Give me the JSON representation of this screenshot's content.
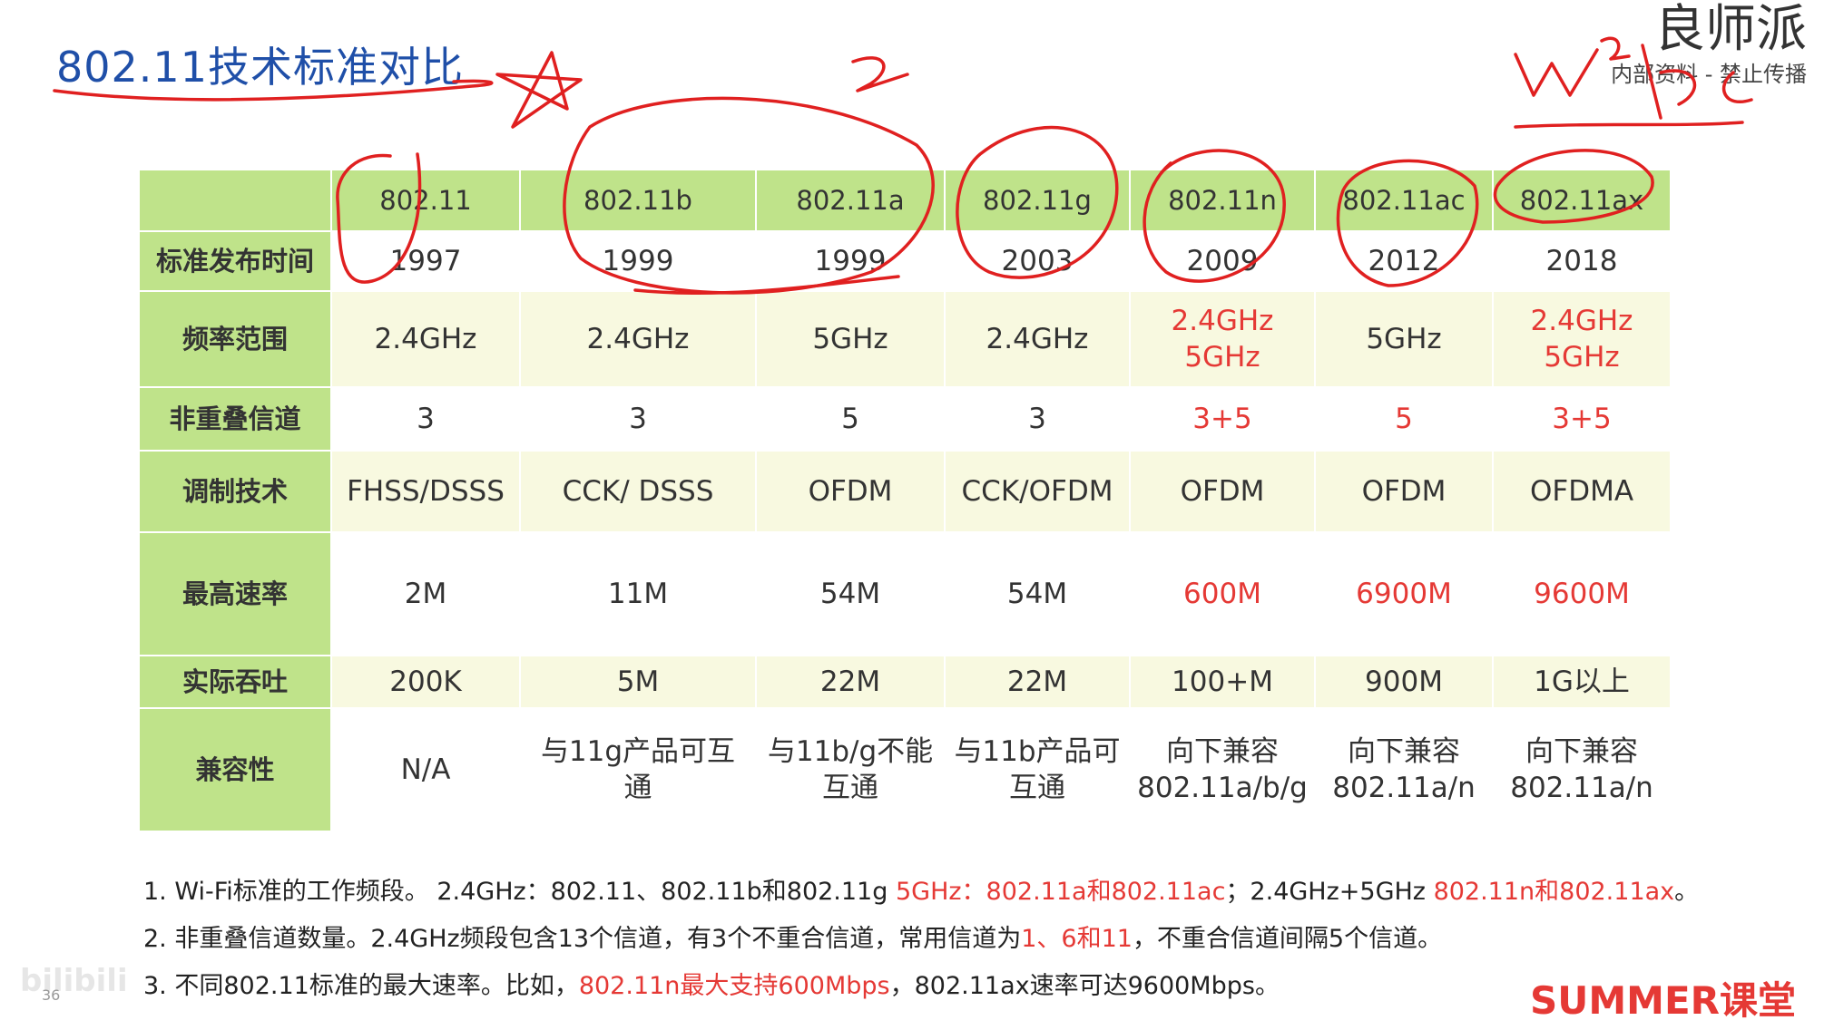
{
  "title": "802.11技术标准对比",
  "brand_top": {
    "name": "良师派",
    "sub": "内部资料 - 禁止传播"
  },
  "table": {
    "header_row_label": "",
    "columns": [
      "802.11",
      "802.11b",
      "802.11a",
      "802.11g",
      "802.11n",
      "802.11ac",
      "802.11ax"
    ],
    "rows": [
      {
        "label": "标准发布时间",
        "cells": [
          [
            "1997"
          ],
          [
            "1999"
          ],
          [
            "1999"
          ],
          [
            "2003"
          ],
          [
            "2009"
          ],
          [
            "2012"
          ],
          [
            "2018"
          ]
        ],
        "red": []
      },
      {
        "label": "频率范围",
        "cells": [
          [
            "2.4GHz"
          ],
          [
            "2.4GHz"
          ],
          [
            "5GHz"
          ],
          [
            "2.4GHz"
          ],
          [
            "2.4GHz",
            "5GHz"
          ],
          [
            "5GHz"
          ],
          [
            "2.4GHz",
            "5GHz"
          ]
        ],
        "red": [
          4,
          6
        ]
      },
      {
        "label": "非重叠信道",
        "cells": [
          [
            "3"
          ],
          [
            "3"
          ],
          [
            "5"
          ],
          [
            "3"
          ],
          [
            "3+5"
          ],
          [
            "5"
          ],
          [
            "3+5"
          ]
        ],
        "red": [
          4,
          5,
          6
        ]
      },
      {
        "label": "调制技术",
        "cells": [
          [
            "FHSS/DSSS"
          ],
          [
            "CCK/ DSSS"
          ],
          [
            "OFDM"
          ],
          [
            "CCK/OFDM"
          ],
          [
            "OFDM"
          ],
          [
            "OFDM"
          ],
          [
            "OFDMA"
          ]
        ],
        "red": []
      },
      {
        "label": "最高速率",
        "cells": [
          [
            "2M"
          ],
          [
            "11M"
          ],
          [
            "54M"
          ],
          [
            "54M"
          ],
          [
            "600M"
          ],
          [
            "6900M"
          ],
          [
            "9600M"
          ]
        ],
        "red": [
          4,
          5,
          6
        ]
      },
      {
        "label": "实际吞吐",
        "cells": [
          [
            "200K"
          ],
          [
            "5M"
          ],
          [
            "22M"
          ],
          [
            "22M"
          ],
          [
            "100+M"
          ],
          [
            "900M"
          ],
          [
            "1G以上"
          ]
        ],
        "red": []
      },
      {
        "label": "兼容性",
        "cells": [
          [
            "N/A"
          ],
          [
            "与11g产品可互",
            "通"
          ],
          [
            "与11b/g不能",
            "互通"
          ],
          [
            "与11b产品可",
            "互通"
          ],
          [
            "向下兼容",
            "802.11a/b/g"
          ],
          [
            "向下兼容",
            "802.11a/n"
          ],
          [
            "向下兼容",
            "802.11a/n"
          ]
        ],
        "red": []
      }
    ]
  },
  "notes": [
    [
      {
        "t": "1. Wi-Fi标准的工作频段。 2.4GHz：802.11、802.11b和802.11g "
      },
      {
        "t": "5GHz：802.11a和802.11ac",
        "red": true
      },
      {
        "t": "；2.4GHz+5GHz "
      },
      {
        "t": "802.11n和802.11ax",
        "red": true
      },
      {
        "t": "。"
      }
    ],
    [
      {
        "t": "2. 非重叠信道数量。2.4GHz频段包含13个信道，有3个不重合信道，常用信道为"
      },
      {
        "t": "1、6和11",
        "red": true
      },
      {
        "t": "，不重合信道间隔5个信道。"
      }
    ],
    [
      {
        "t": "3. 不同802.11标准的最大速率。比如，"
      },
      {
        "t": "802.11n最大支持600Mbps",
        "red": true
      },
      {
        "t": "，802.11ax速率可达9600Mbps。"
      }
    ]
  ],
  "brand_bottom": "SUMMER课堂",
  "page_number": "36",
  "watermark": "bilibili",
  "colors": {
    "header_green": "#bfe38a",
    "band_yellow": "#f8f9e0",
    "highlight_red": "#e53935",
    "ink_red": "#e02020",
    "title_blue": "#1f4fa8"
  }
}
